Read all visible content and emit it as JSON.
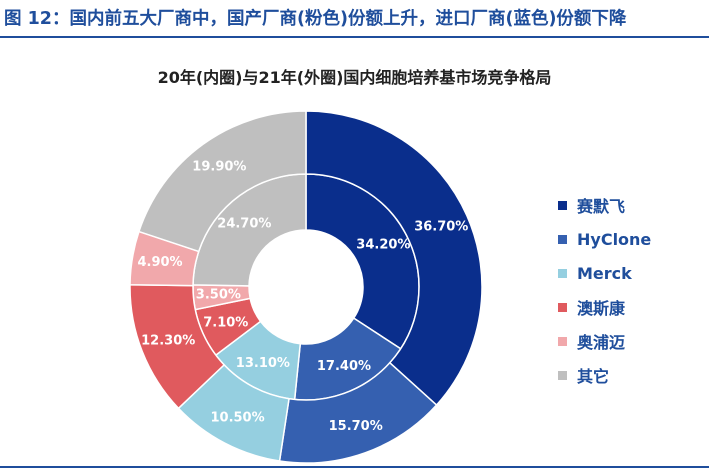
{
  "figure": {
    "title": "图 12：国内前五大厂商中，国产厂商(粉色)份额上升，进口厂商(蓝色)份额下降"
  },
  "chart_data": {
    "type": "pie",
    "title": "20年(内圈)与21年(外圈)国内细胞培养基市场竞争格局",
    "categories": [
      "赛默飞",
      "HyClone",
      "Merck",
      "澳斯康",
      "奥浦迈",
      "其它"
    ],
    "colors": [
      "#0a2e8c",
      "#3560b0",
      "#95cfe0",
      "#e05a5e",
      "#f1a8ab",
      "#bfbfbf"
    ],
    "series": [
      {
        "name": "20年(内圈)",
        "ring": "inner",
        "values": [
          34.2,
          17.4,
          13.1,
          7.1,
          3.5,
          24.7
        ],
        "labels": [
          "34.20%",
          "17.40%",
          "13.10%",
          "7.10%",
          "3.50%",
          "24.70%"
        ]
      },
      {
        "name": "21年(外圈)",
        "ring": "outer",
        "values": [
          36.7,
          15.7,
          10.5,
          12.3,
          4.9,
          19.9
        ],
        "labels": [
          "36.70%",
          "15.70%",
          "10.50%",
          "12.30%",
          "4.90%",
          "19.90%"
        ]
      }
    ],
    "legend_position": "right"
  }
}
